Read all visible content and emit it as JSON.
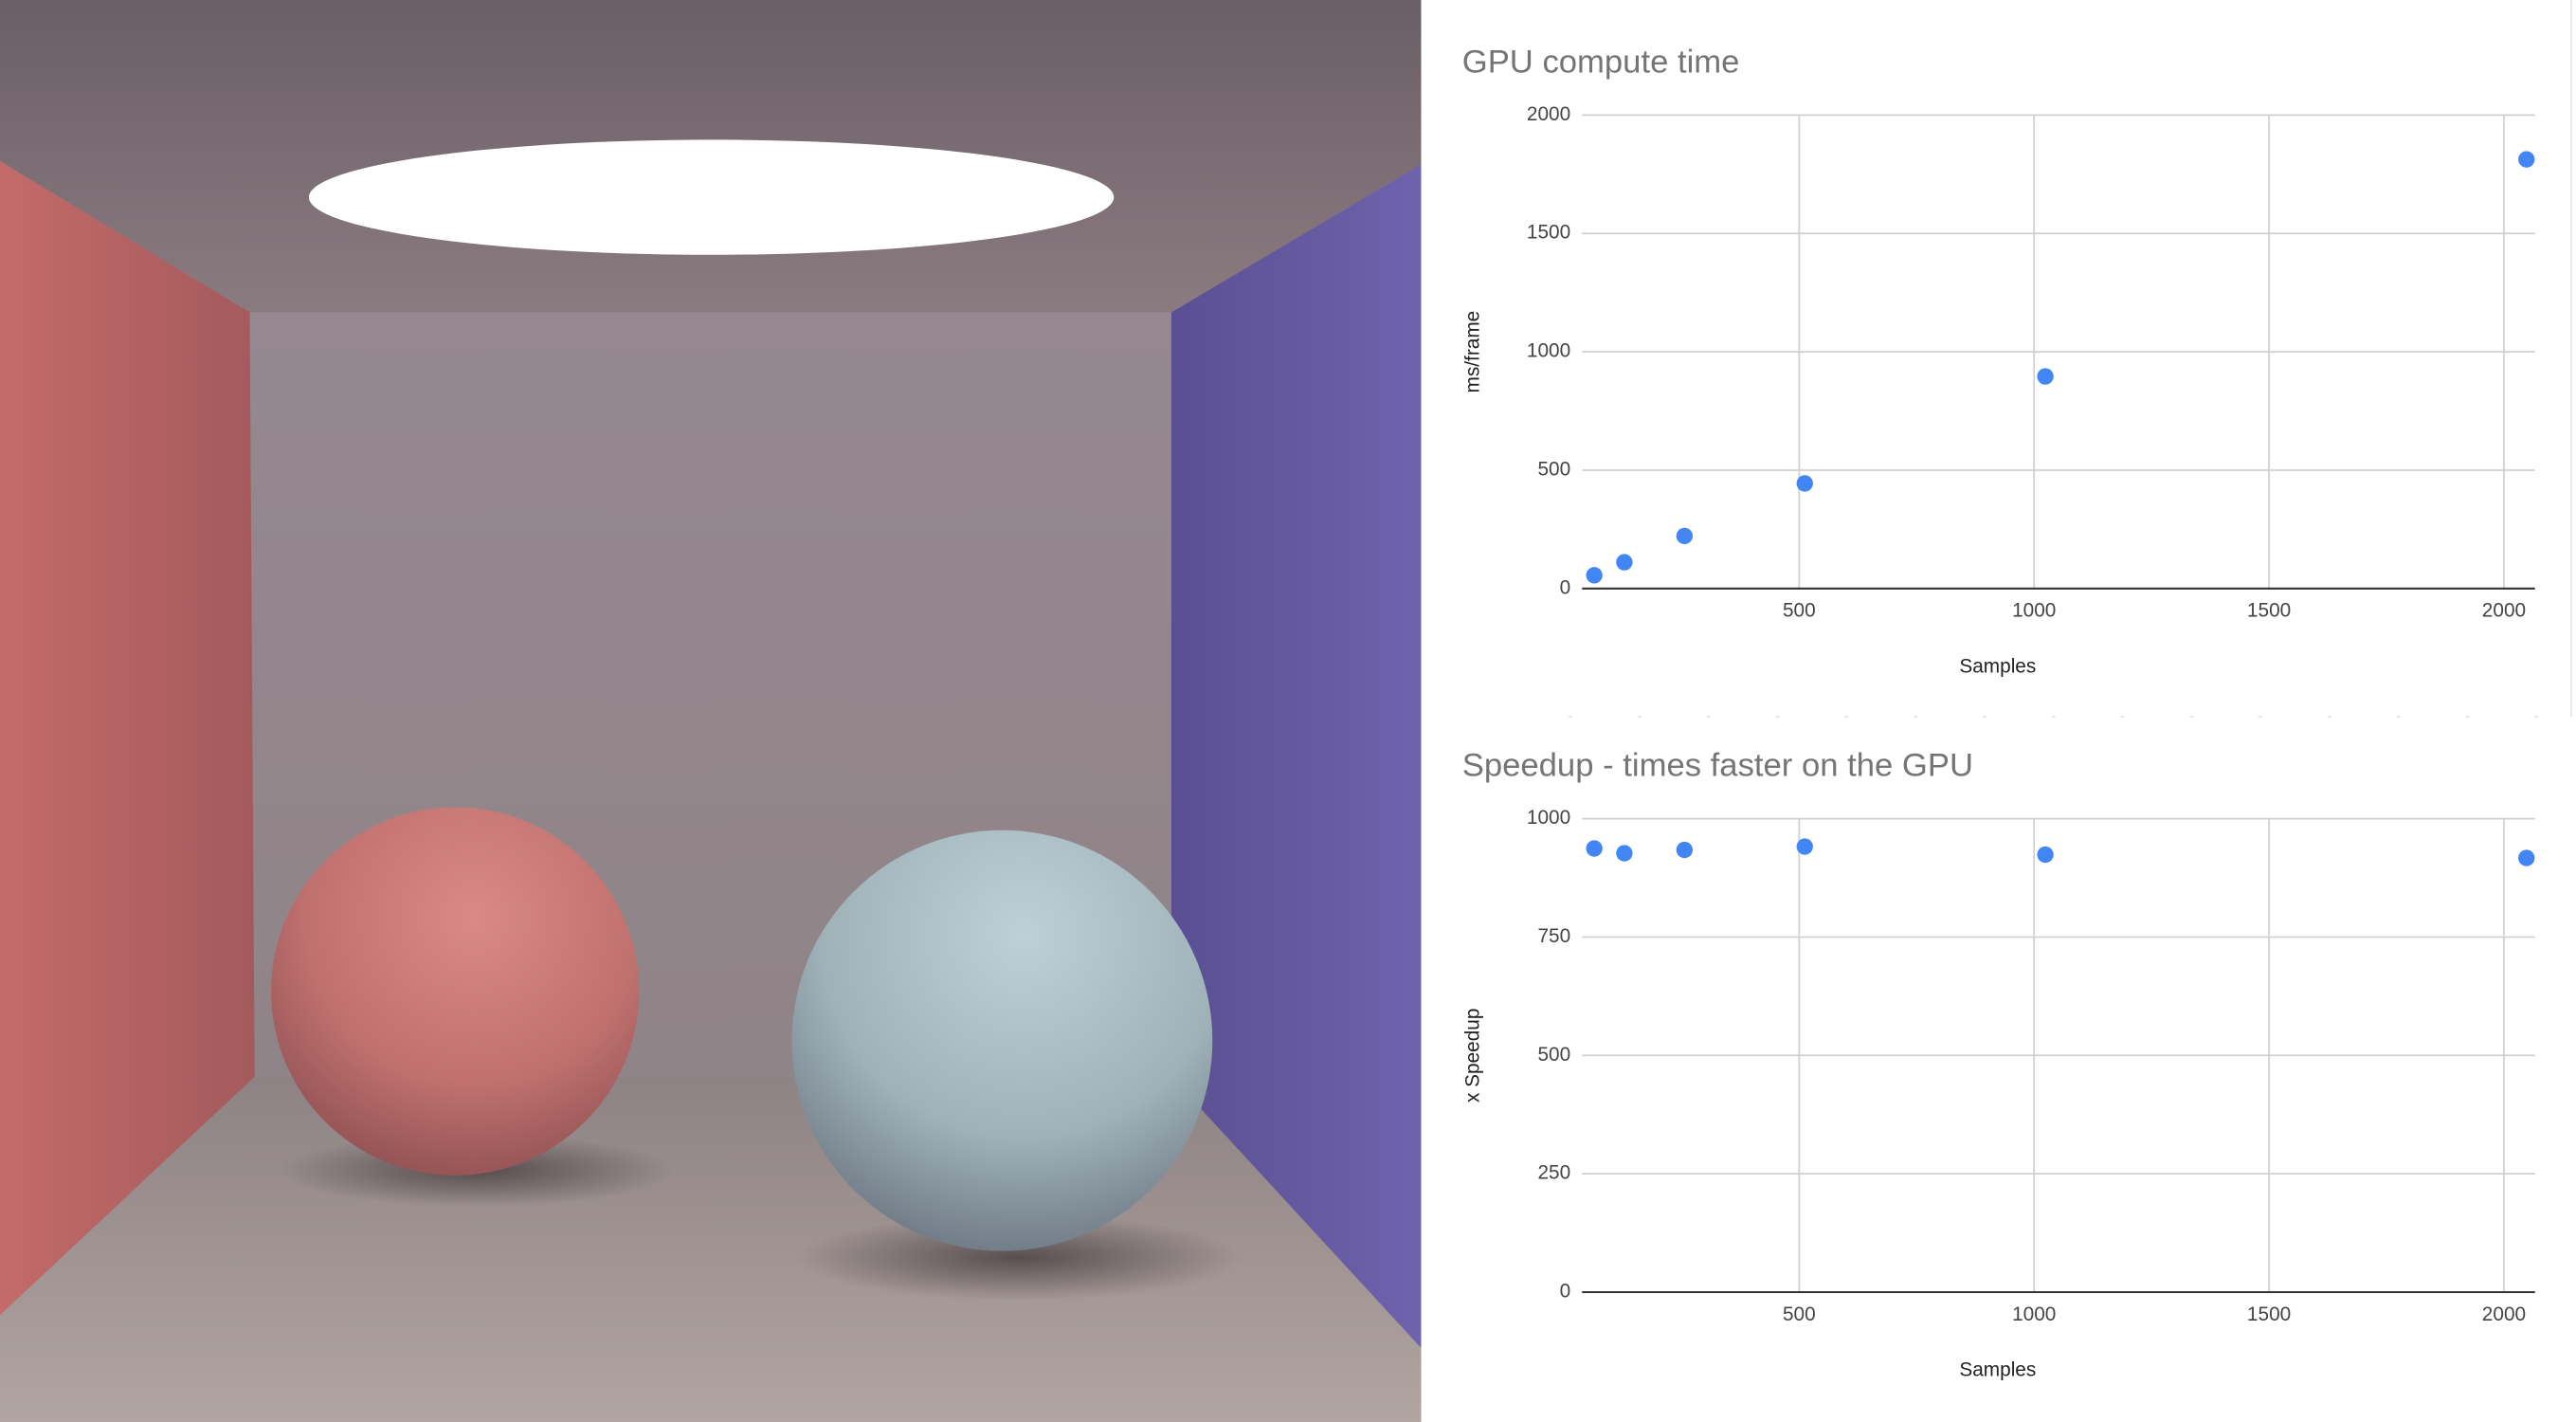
{
  "chart_data": [
    {
      "type": "scatter",
      "title": "GPU compute time",
      "x_label": "Samples",
      "y_label": "ms/frame",
      "x": [
        64,
        128,
        256,
        512,
        1024,
        2048
      ],
      "values": [
        56,
        111,
        222,
        444,
        896,
        1813
      ],
      "color": "#4285f4",
      "xlim": [
        38,
        2066
      ],
      "ylim": [
        0,
        2000
      ],
      "xticks": [
        500,
        1000,
        1500,
        2000
      ],
      "yticks": [
        0,
        500,
        1000,
        1500,
        2000
      ],
      "grid": true
    },
    {
      "type": "scatter",
      "title": "Speedup - times faster on the GPU",
      "x_label": "Samples",
      "y_label": "x Speedup",
      "x": [
        64,
        128,
        256,
        512,
        1024,
        2048
      ],
      "values": [
        937,
        927,
        934,
        941,
        924,
        917
      ],
      "color": "#4285f4",
      "xlim": [
        38,
        2066
      ],
      "ylim": [
        0,
        1000
      ],
      "xticks": [
        500,
        1000,
        1500,
        2000
      ],
      "yticks": [
        0,
        250,
        500,
        750,
        1000
      ],
      "grid": true
    }
  ]
}
